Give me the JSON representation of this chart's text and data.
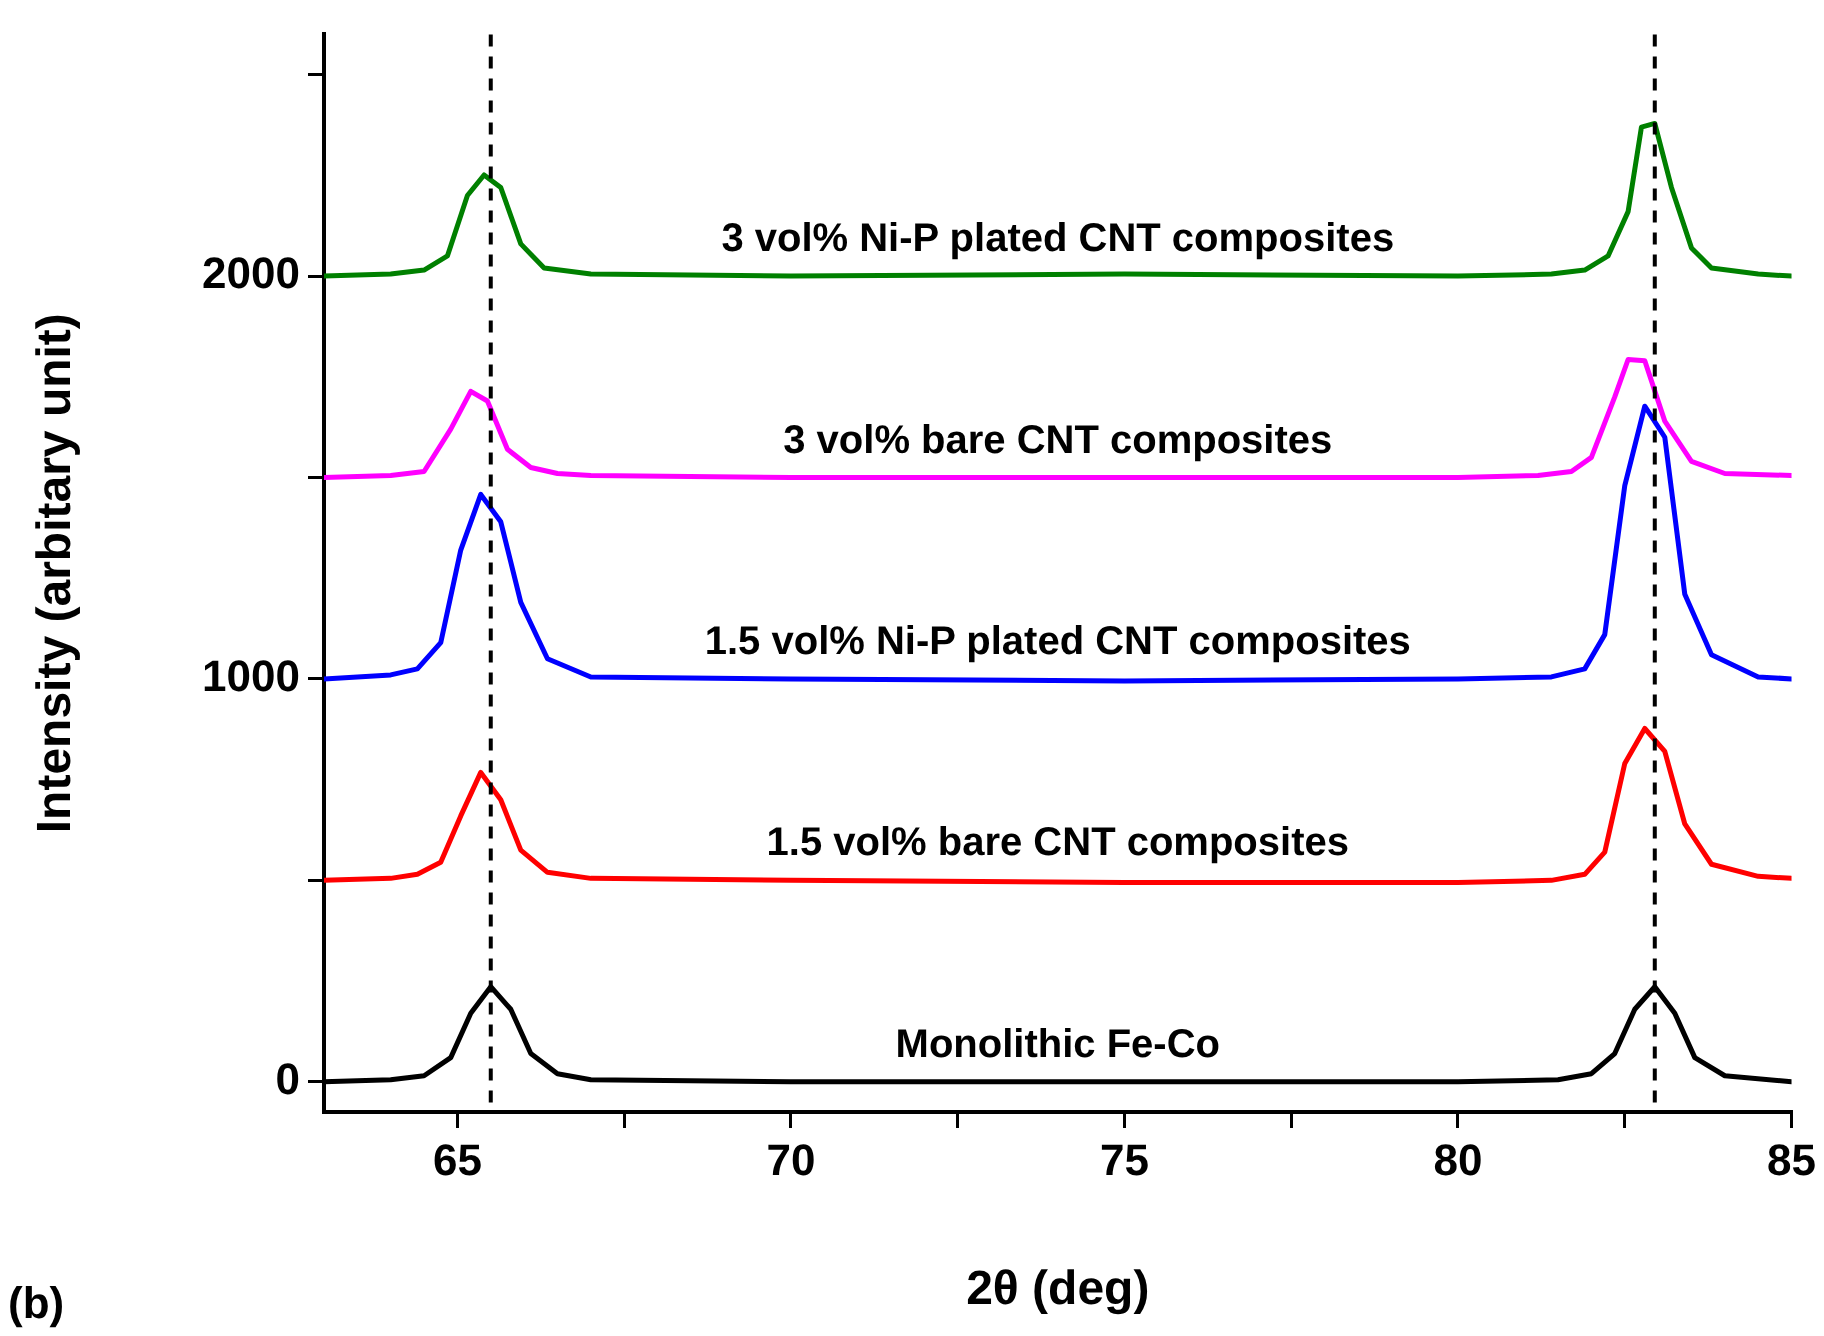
{
  "chart_data": {
    "type": "line",
    "xlabel": "2θ (deg)",
    "ylabel": "Intensity (arbitary unit)",
    "xlim": [
      63,
      85
    ],
    "ylim": [
      -75,
      2600
    ],
    "xticks": [
      65,
      {
        "value": 67.5,
        "label": null
      },
      70,
      {
        "value": 72.5,
        "label": null
      },
      75,
      {
        "value": 77.5,
        "label": null
      },
      80,
      {
        "value": 82.5,
        "label": null
      },
      85
    ],
    "yticks": [
      0,
      {
        "value": 500,
        "label": null
      },
      1000,
      {
        "value": 1500,
        "label": null
      },
      2000,
      {
        "value": 2500,
        "label": null
      }
    ],
    "grid": false,
    "legend": false,
    "marker": "none",
    "line_style": "solid",
    "series": [
      {
        "name": "Monolithic Fe-Co",
        "color": "#000000",
        "x": [
          63,
          64,
          64.5,
          64.9,
          65.2,
          65.5,
          65.8,
          66.1,
          66.5,
          67,
          70,
          75,
          80,
          81.5,
          82,
          82.35,
          82.65,
          82.95,
          83.25,
          83.55,
          84,
          85
        ],
        "values": [
          0,
          5,
          15,
          60,
          170,
          236,
          180,
          70,
          20,
          5,
          0,
          0,
          0,
          5,
          20,
          70,
          180,
          236,
          170,
          60,
          15,
          0
        ]
      },
      {
        "name": "1.5 vol% bare CNT composites",
        "color": "#ff0000",
        "x": [
          63,
          64,
          64.4,
          64.75,
          65.05,
          65.35,
          65.65,
          65.95,
          66.35,
          67,
          70,
          75,
          80,
          81.4,
          81.9,
          82.2,
          82.5,
          82.8,
          83.1,
          83.4,
          83.8,
          84.5,
          85
        ],
        "values": [
          500,
          505,
          515,
          545,
          660,
          768,
          700,
          575,
          520,
          505,
          500,
          495,
          495,
          500,
          515,
          570,
          790,
          877,
          820,
          640,
          540,
          510,
          505
        ]
      },
      {
        "name": "1.5 vol% Ni-P plated CNT composites",
        "color": "#0000ff",
        "x": [
          63,
          64,
          64.4,
          64.75,
          65.05,
          65.35,
          65.65,
          65.95,
          66.35,
          67,
          70,
          75,
          80,
          81.4,
          81.9,
          82.2,
          82.5,
          82.8,
          83.1,
          83.4,
          83.8,
          84.5,
          85
        ],
        "values": [
          1000,
          1010,
          1025,
          1090,
          1320,
          1458,
          1390,
          1190,
          1050,
          1005,
          1000,
          995,
          1000,
          1005,
          1025,
          1110,
          1480,
          1677,
          1600,
          1210,
          1060,
          1005,
          1000
        ]
      },
      {
        "name": "3 vol% bare CNT composites",
        "color": "#ff00ff",
        "x": [
          63,
          64,
          64.5,
          64.9,
          65.2,
          65.45,
          65.75,
          66.1,
          66.5,
          67,
          70,
          75,
          80,
          81.2,
          81.7,
          82,
          82.35,
          82.55,
          82.8,
          83.1,
          83.5,
          84,
          85
        ],
        "values": [
          1500,
          1505,
          1515,
          1620,
          1714,
          1690,
          1570,
          1525,
          1510,
          1505,
          1500,
          1500,
          1500,
          1505,
          1515,
          1550,
          1700,
          1793,
          1790,
          1640,
          1540,
          1510,
          1505
        ]
      },
      {
        "name": "3 vol% Ni-P plated CNT composites",
        "color": "#008000",
        "x": [
          63,
          64,
          64.5,
          64.85,
          65.15,
          65.4,
          65.65,
          65.95,
          66.3,
          67,
          70,
          75,
          80,
          81.4,
          81.9,
          82.25,
          82.55,
          82.75,
          82.95,
          83.2,
          83.5,
          83.8,
          84.5,
          85
        ],
        "values": [
          2000,
          2005,
          2015,
          2050,
          2200,
          2251,
          2220,
          2080,
          2020,
          2005,
          2000,
          2005,
          2000,
          2005,
          2015,
          2050,
          2160,
          2370,
          2379,
          2220,
          2070,
          2020,
          2005,
          2000
        ]
      }
    ],
    "ref_lines": [
      {
        "axis": "x",
        "value": 65.5,
        "color": "#000000",
        "line_style": "dashed"
      },
      {
        "axis": "x",
        "value": 82.95,
        "color": "#000000",
        "line_style": "dashed"
      }
    ],
    "annotations": [
      "(b)"
    ]
  }
}
